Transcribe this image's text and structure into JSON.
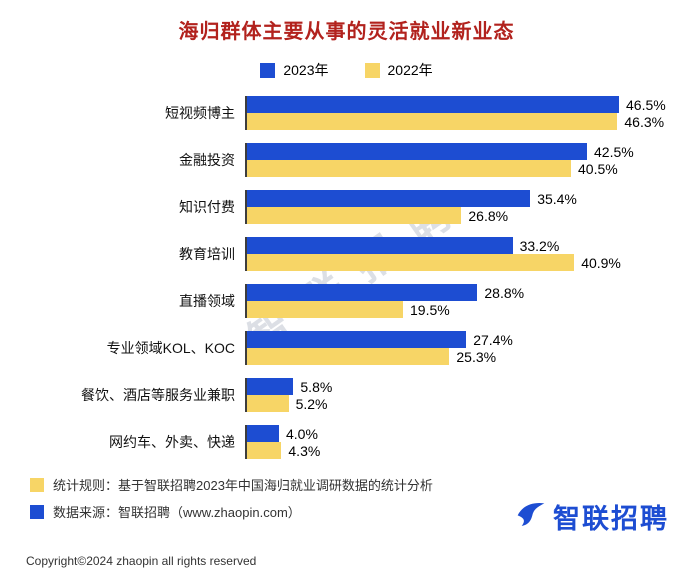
{
  "title": "海归群体主要从事的灵活就业新业态",
  "legend": [
    {
      "label": "2023年",
      "color": "#1d4dd2"
    },
    {
      "label": "2022年",
      "color": "#f7d566"
    }
  ],
  "chart_data": {
    "type": "bar",
    "orientation": "horizontal",
    "title": "海归群体主要从事的灵活就业新业态",
    "categories": [
      "短视频博主",
      "金融投资",
      "知识付费",
      "教育培训",
      "直播领域",
      "专业领域KOL、KOC",
      "餐饮、酒店等服务业兼职",
      "网约车、外卖、快递"
    ],
    "series": [
      {
        "name": "2023年",
        "color": "#1d4dd2",
        "values": [
          46.5,
          42.5,
          35.4,
          33.2,
          28.8,
          27.4,
          5.8,
          4.0
        ]
      },
      {
        "name": "2022年",
        "color": "#f7d566",
        "values": [
          46.3,
          40.5,
          26.8,
          40.9,
          19.5,
          25.3,
          5.2,
          4.3
        ]
      }
    ],
    "value_suffix": "%",
    "xlim": [
      0,
      50
    ],
    "grid": false,
    "legend_position": "top"
  },
  "footnotes": [
    {
      "color": "#f7d566",
      "text": "统计规则：基于智联招聘2023年中国海归就业调研数据的统计分析"
    },
    {
      "color": "#1d4dd2",
      "text": "数据来源：智联招聘（www.zhaopin.com）"
    }
  ],
  "logo_text": "智联招聘",
  "watermark": "智联招聘",
  "copyright": "Copyright©2024 zhaopin all rights reserved"
}
